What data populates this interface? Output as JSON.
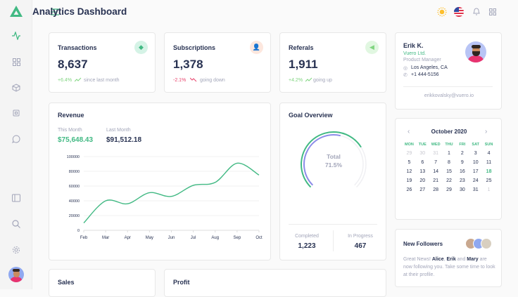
{
  "header": {
    "title": "Analytics Dashboard"
  },
  "sidebar": {
    "items": [
      "activity-icon",
      "grid-icon",
      "box-icon",
      "cpu-icon",
      "message-icon",
      "sidebar-icon",
      "search-icon",
      "settings-icon"
    ]
  },
  "stats": [
    {
      "title": "Transactions",
      "value": "8,637",
      "change": "+6.4%",
      "note": "since last month",
      "icon": "diamond-icon",
      "color": "#41b983",
      "bg": "#d5f3e6",
      "trend": "up"
    },
    {
      "title": "Subscriptions",
      "value": "1,378",
      "change": "-2.1%",
      "note": "going down",
      "icon": "user-plus-icon",
      "color": "#f7936f",
      "bg": "#fde7de",
      "trend": "down"
    },
    {
      "title": "Referals",
      "value": "1,911",
      "change": "+4.2%",
      "note": "going up",
      "icon": "megaphone-icon",
      "color": "#7fd47f",
      "bg": "#e1f7e1",
      "trend": "up"
    }
  ],
  "revenue": {
    "title": "Revenue",
    "this_month_label": "This Month",
    "this_month": "$75,648.43",
    "last_month_label": "Last Month",
    "last_month": "$91,512.18"
  },
  "chart_data": {
    "type": "line",
    "categories": [
      "Feb",
      "Mar",
      "Apr",
      "May",
      "Jun",
      "Jul",
      "Aug",
      "Sep",
      "Oct"
    ],
    "values": [
      10000,
      40000,
      36000,
      51000,
      46000,
      61000,
      65000,
      91000,
      75000
    ],
    "ylim": [
      0,
      100000
    ],
    "yticks": [
      "100000",
      "80000",
      "60000",
      "40000",
      "20000",
      "0"
    ],
    "grid": true,
    "color": "#41b983"
  },
  "goal": {
    "title": "Goal Overview",
    "center_label": "Total",
    "center_value": "71.5%",
    "completed_label": "Completed",
    "completed": "1,223",
    "progress_label": "In Progress",
    "progress": "467",
    "outer_fraction": 0.715,
    "inner_fraction": 0.55
  },
  "profile": {
    "name": "Erik K.",
    "company": "Vuero Ltd.",
    "role": "Product Manager",
    "location": "Los Angeles, CA",
    "phone": "+1 444-5156",
    "email": "erikkovalsky@vuero.io"
  },
  "calendar": {
    "month": "October 2020",
    "days": [
      "MON",
      "TUE",
      "WED",
      "THU",
      "FRI",
      "SAT",
      "SUN"
    ],
    "prev": [
      "29",
      "30",
      "31"
    ],
    "current": [
      "1",
      "2",
      "3",
      "4",
      "5",
      "6",
      "7",
      "8",
      "9",
      "10",
      "11",
      "12",
      "13",
      "14",
      "15",
      "16",
      "17",
      "18",
      "19",
      "20",
      "21",
      "22",
      "23",
      "24",
      "25",
      "26",
      "27",
      "28",
      "29",
      "30",
      "31"
    ],
    "next": [
      "1"
    ],
    "today": "18"
  },
  "followers": {
    "title": "New Followers",
    "text1": "Great News! ",
    "name1": "Alice",
    "sep1": ", ",
    "name2": "Erik",
    "sep2": " and ",
    "name3": "Mary",
    "text2": " are now following you. Take some time to look at their profile."
  },
  "bottom": {
    "sales": "Sales",
    "profit": "Profit"
  }
}
